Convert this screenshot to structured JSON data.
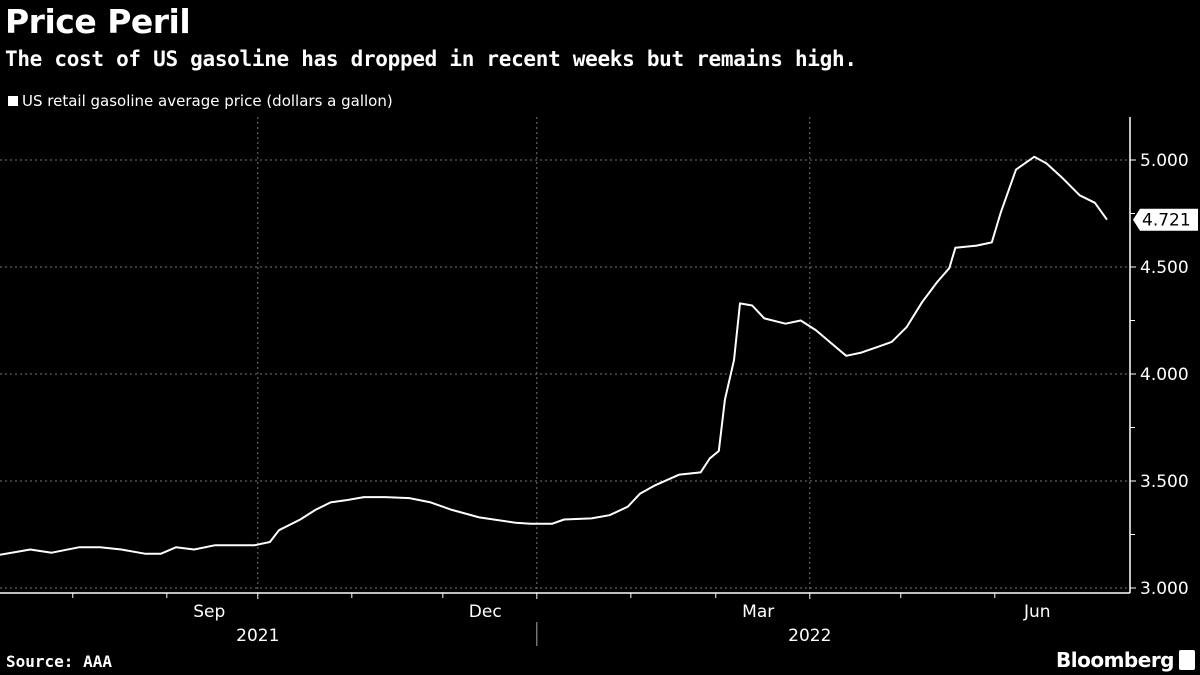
{
  "chart_data": {
    "type": "line",
    "title": "Price Peril",
    "subtitle": "The cost of US gasoline has dropped in recent weeks but remains high.",
    "source": "Source: AAA",
    "brand": "Bloomberg",
    "series": [
      {
        "name": "US retail gasoline average price (dollars a gallon)",
        "color": "#ffffff",
        "x": [
          "2021-07-08",
          "2021-07-18",
          "2021-07-25",
          "2021-08-03",
          "2021-08-10",
          "2021-08-17",
          "2021-08-25",
          "2021-08-30",
          "2021-09-04",
          "2021-09-10",
          "2021-09-17",
          "2021-09-30",
          "2021-10-05",
          "2021-10-08",
          "2021-10-15",
          "2021-10-20",
          "2021-10-25",
          "2021-10-30",
          "2021-11-05",
          "2021-11-12",
          "2021-11-20",
          "2021-11-27",
          "2021-12-04",
          "2021-12-13",
          "2021-12-25",
          "2021-12-30",
          "2022-01-06",
          "2022-01-10",
          "2022-01-19",
          "2022-01-25",
          "2022-01-31",
          "2022-02-04",
          "2022-02-09",
          "2022-02-17",
          "2022-02-24",
          "2022-02-27",
          "2022-03-02",
          "2022-03-04",
          "2022-03-07",
          "2022-03-09",
          "2022-03-13",
          "2022-03-17",
          "2022-03-24",
          "2022-03-29",
          "2022-04-03",
          "2022-04-08",
          "2022-04-13",
          "2022-04-18",
          "2022-04-23",
          "2022-04-28",
          "2022-05-03",
          "2022-05-08",
          "2022-05-13",
          "2022-05-17",
          "2022-05-19",
          "2022-05-26",
          "2022-05-31",
          "2022-06-03",
          "2022-06-08",
          "2022-06-14",
          "2022-06-18",
          "2022-06-23",
          "2022-06-29",
          "2022-07-04",
          "2022-07-08"
        ],
        "y": [
          3.155,
          3.18,
          3.165,
          3.19,
          3.19,
          3.18,
          3.16,
          3.16,
          3.19,
          3.18,
          3.2,
          3.2,
          3.215,
          3.27,
          3.32,
          3.365,
          3.4,
          3.41,
          3.425,
          3.425,
          3.42,
          3.4,
          3.365,
          3.33,
          3.305,
          3.3,
          3.3,
          3.32,
          3.325,
          3.34,
          3.38,
          3.44,
          3.48,
          3.53,
          3.54,
          3.605,
          3.64,
          3.88,
          4.065,
          4.33,
          4.32,
          4.26,
          4.235,
          4.25,
          4.205,
          4.145,
          4.085,
          4.1,
          4.125,
          4.15,
          4.22,
          4.335,
          4.43,
          4.495,
          4.59,
          4.6,
          4.615,
          4.755,
          4.955,
          5.015,
          4.985,
          4.92,
          4.835,
          4.8,
          4.721
        ]
      }
    ],
    "last_value_label": "4.721",
    "yticks": [
      "3.000",
      "3.500",
      "4.000",
      "4.500",
      "5.000"
    ],
    "ylim": [
      2.98,
      5.2
    ],
    "xlim": [
      "2021-07-08",
      "2022-07-08"
    ],
    "xtick_labels": [
      {
        "label": "Sep",
        "date": "2021-09-15"
      },
      {
        "label": "Dec",
        "date": "2021-12-15"
      },
      {
        "label": "Mar",
        "date": "2022-03-15"
      },
      {
        "label": "Jun",
        "date": "2022-06-15"
      }
    ],
    "year_labels": [
      {
        "label": "2021",
        "date": "2021-10-01"
      },
      {
        "label": "2022",
        "date": "2022-04-01"
      }
    ],
    "grid": true,
    "y_axis_position": "right",
    "legend_placement": "top-left"
  }
}
